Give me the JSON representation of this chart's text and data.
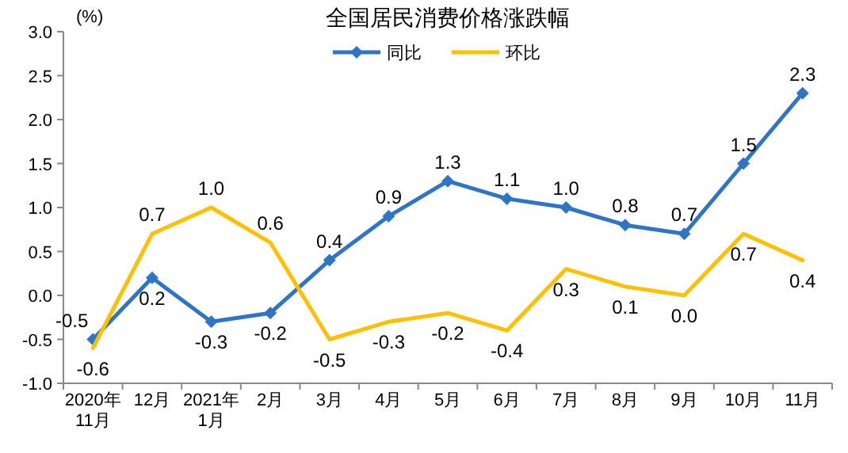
{
  "chart_data": {
    "type": "line",
    "title": "全国居民消费价格涨跌幅",
    "ylabel": "(%)",
    "categories": [
      "2020年\n11月",
      "12月",
      "2021年\n1月",
      "2月",
      "3月",
      "4月",
      "5月",
      "6月",
      "7月",
      "8月",
      "9月",
      "10月",
      "11月"
    ],
    "series": [
      {
        "name": "同比",
        "color": "#2e75c5",
        "marker": "diamond",
        "values": [
          -0.5,
          0.2,
          -0.3,
          -0.2,
          0.4,
          0.9,
          1.3,
          1.1,
          1.0,
          0.8,
          0.7,
          1.5,
          2.3
        ],
        "value_labels": [
          "-0.5",
          "0.2",
          "-0.3",
          "-0.2",
          "0.4",
          "0.9",
          "1.3",
          "1.1",
          "1.0",
          "0.8",
          "0.7",
          "1.5",
          "2.3"
        ]
      },
      {
        "name": "环比",
        "color": "#ffc000",
        "marker": "none",
        "values": [
          -0.6,
          0.7,
          1.0,
          0.6,
          -0.5,
          -0.3,
          -0.2,
          -0.4,
          0.3,
          0.1,
          0.0,
          0.7,
          0.4
        ],
        "value_labels": [
          "-0.6",
          "0.7",
          "1.0",
          "0.6",
          "-0.5",
          "-0.3",
          "-0.2",
          "-0.4",
          "0.3",
          "0.1",
          "0.0",
          "0.7",
          "0.4"
        ]
      }
    ],
    "ylim": [
      -1.0,
      3.0
    ],
    "yticks": [
      {
        "value": -1,
        "label": "-1.0"
      },
      {
        "value": -0.5,
        "label": "-0.5"
      },
      {
        "value": 0,
        "label": "0.0"
      },
      {
        "value": 0.5,
        "label": "0.5"
      },
      {
        "value": 1,
        "label": "1.0"
      },
      {
        "value": 1.5,
        "label": "1.5"
      },
      {
        "value": 2,
        "label": "2.0"
      },
      {
        "value": 2.5,
        "label": "2.5"
      },
      {
        "value": 3,
        "label": "3.0"
      }
    ],
    "legend": "top right",
    "grid": false,
    "line_style": "solid"
  }
}
